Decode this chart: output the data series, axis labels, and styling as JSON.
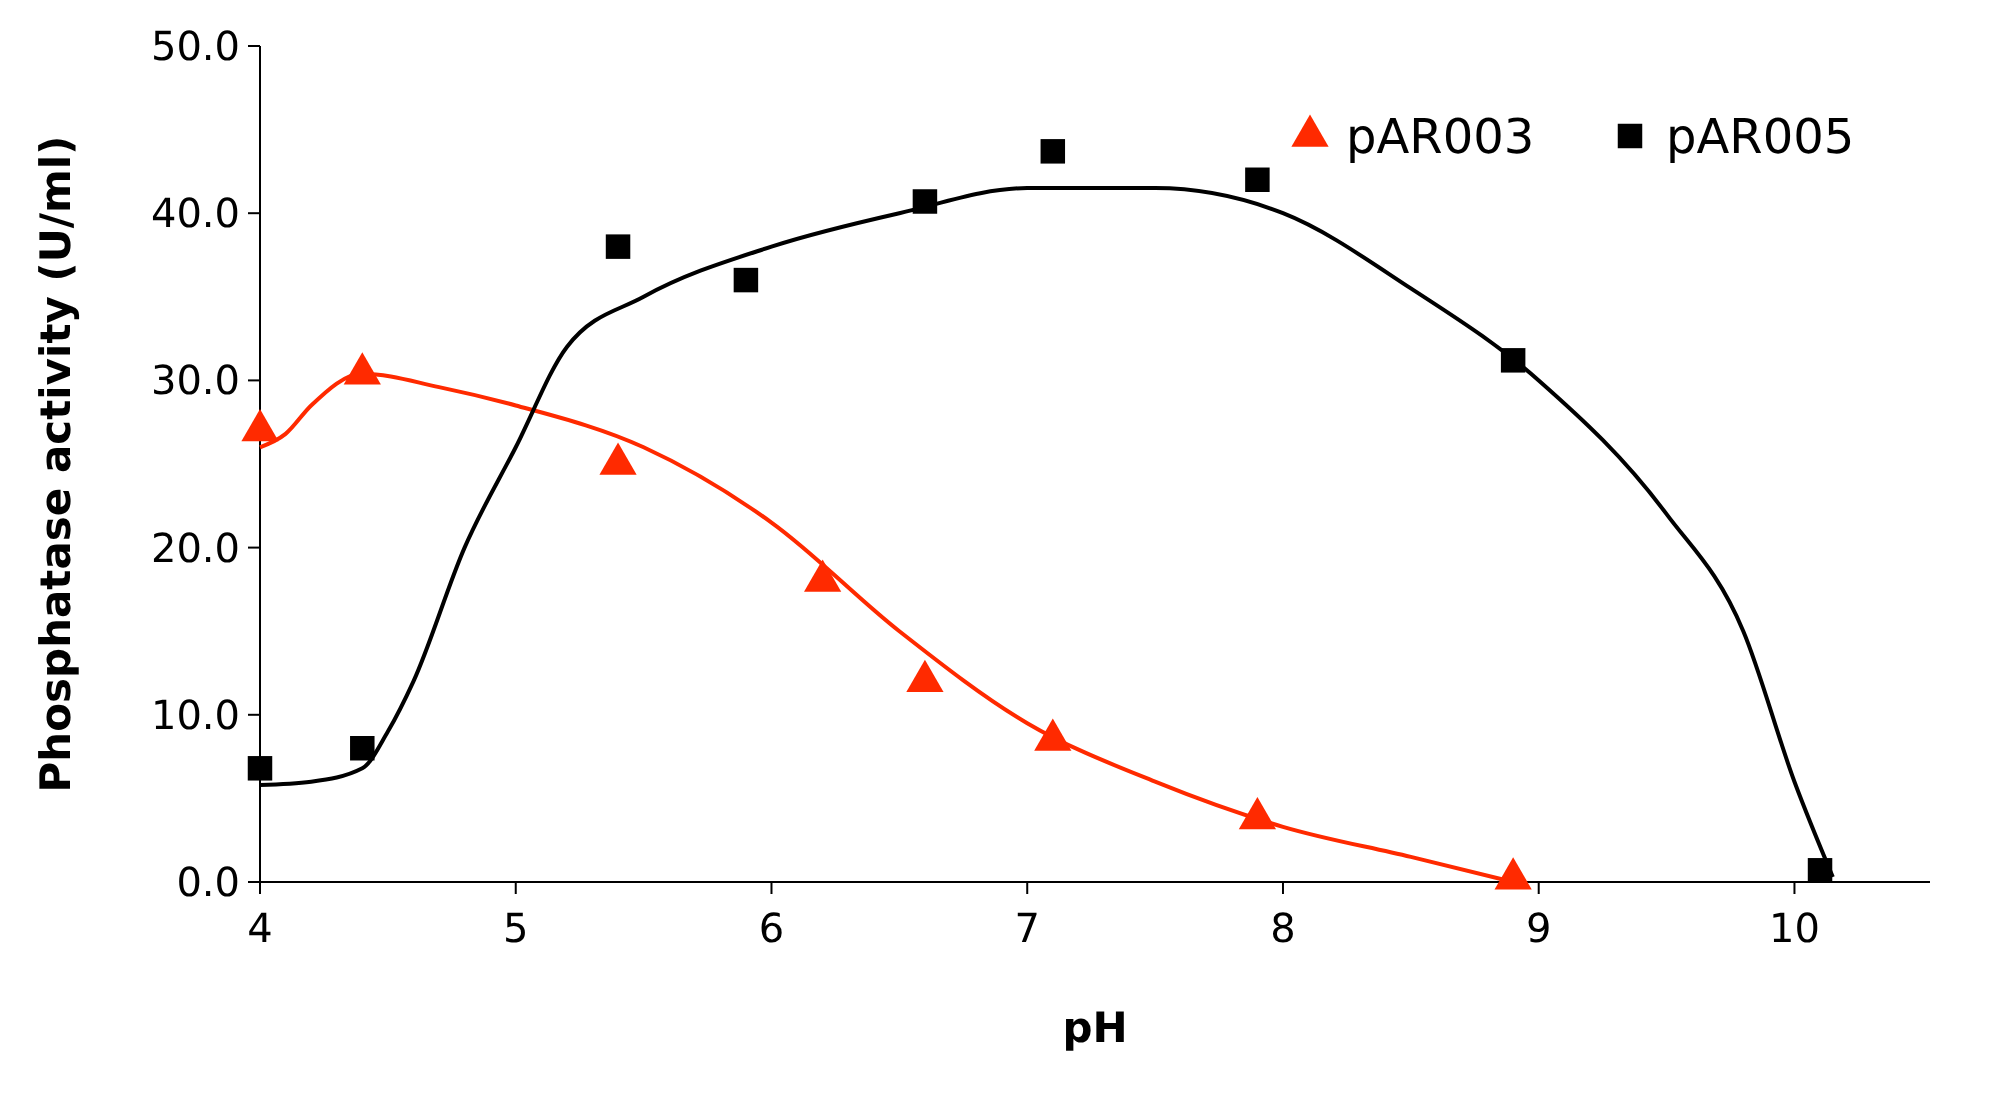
{
  "chart_data": {
    "type": "scatter",
    "xlabel": "pH",
    "ylabel": "Phosphatase activity (U/ml)",
    "xlim": [
      4,
      10.53
    ],
    "xticks": [
      4,
      5,
      6,
      7,
      8,
      9,
      10
    ],
    "ylim": [
      0,
      50
    ],
    "yticks": [
      {
        "value": 0,
        "label": "0.0"
      },
      {
        "value": 10,
        "label": "10.0"
      },
      {
        "value": 20,
        "label": "20.0"
      },
      {
        "value": 30,
        "label": "30.0"
      },
      {
        "value": 40,
        "label": "40.0"
      },
      {
        "value": 50,
        "label": "50.0"
      }
    ],
    "legend": "top right",
    "grid": false,
    "series": [
      {
        "type": "line",
        "color": "#ff2a00",
        "marker": "none",
        "x": [
          4,
          4.1,
          4.2,
          4.4,
          4.7,
          5,
          5.5,
          6,
          6.5,
          7,
          7.5,
          8,
          8.5,
          8.9
        ],
        "values": [
          26,
          26.8,
          28.5,
          30.4,
          29.6,
          28.5,
          26,
          21.5,
          15,
          9.5,
          6,
          3.3,
          1.5,
          0
        ]
      },
      {
        "type": "line",
        "color": "#000000",
        "marker": "none",
        "x": [
          4,
          4.2,
          4.4,
          4.5,
          4.6,
          4.8,
          5,
          5.2,
          5.5,
          6,
          6.5,
          7,
          7.5,
          8,
          8.5,
          9,
          9.5,
          9.8,
          10,
          10.15
        ],
        "values": [
          5.8,
          6,
          6.8,
          9,
          12,
          20,
          26,
          32,
          35,
          38,
          40,
          41.5,
          41.5,
          40,
          35.5,
          30,
          22,
          15,
          6,
          0.3
        ]
      },
      {
        "name": "pAR003",
        "color": "#ff2a00",
        "marker": "triangle",
        "x": [
          4,
          4.4,
          5.4,
          6.2,
          6.6,
          7.1,
          7.9,
          8.9
        ],
        "values": [
          27,
          30.4,
          25,
          18,
          12,
          8.5,
          3.8,
          0.2
        ]
      },
      {
        "name": "pAR005",
        "color": "#000000",
        "marker": "square",
        "x": [
          4,
          4.4,
          5.4,
          5.9,
          6.6,
          7.1,
          7.9,
          8.9,
          10.1
        ],
        "values": [
          6.8,
          8,
          38,
          36,
          40.7,
          43.7,
          42,
          31.2,
          0.7
        ]
      }
    ]
  }
}
